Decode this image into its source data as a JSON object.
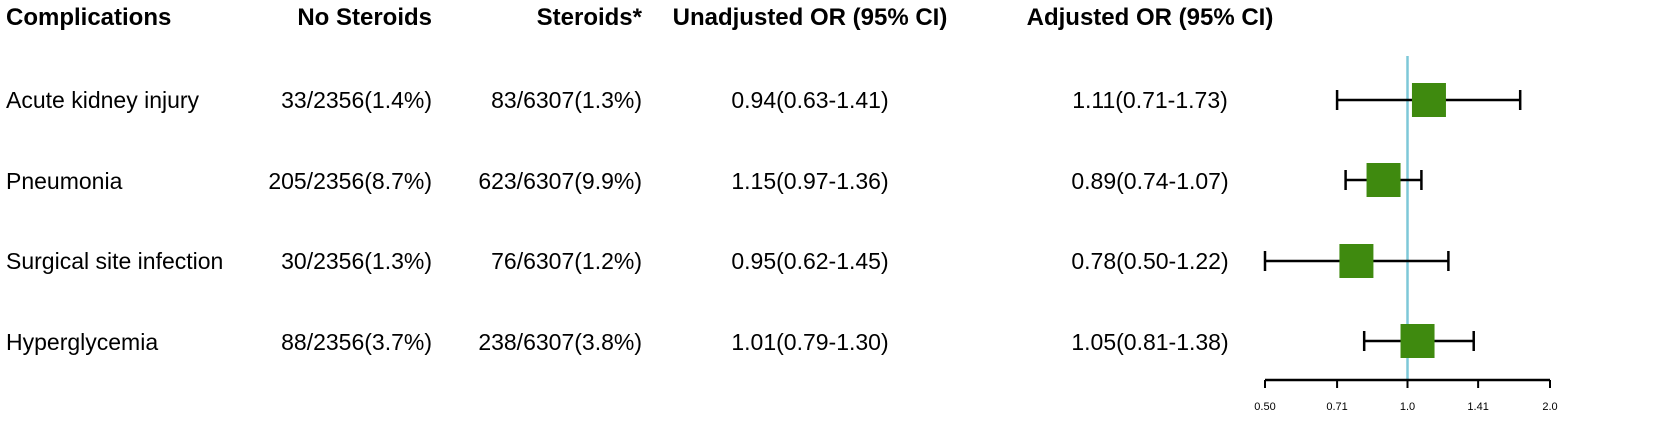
{
  "headers": {
    "complications": "Complications",
    "no_steroids": "No Steroids",
    "steroids": "Steroids*",
    "unadjusted": "Unadjusted OR (95% CI)",
    "adjusted": "Adjusted OR (95% CI)"
  },
  "rows": [
    {
      "name": "Acute kidney injury",
      "no_steroids": "33/2356(1.4%)",
      "steroids": "83/6307(1.3%)",
      "unadjusted": "0.94(0.63-1.41)",
      "adjusted": "1.11(0.71-1.73)"
    },
    {
      "name": "Pneumonia",
      "no_steroids": "205/2356(8.7%)",
      "steroids": "623/6307(9.9%)",
      "unadjusted": "1.15(0.97-1.36)",
      "adjusted": "0.89(0.74-1.07)"
    },
    {
      "name": "Surgical site infection",
      "no_steroids": "30/2356(1.3%)",
      "steroids": "76/6307(1.2%)",
      "unadjusted": "0.95(0.62-1.45)",
      "adjusted": "0.78(0.50-1.22)"
    },
    {
      "name": "Hyperglycemia",
      "no_steroids": "88/2356(3.7%)",
      "steroids": "238/6307(3.8%)",
      "unadjusted": "1.01(0.79-1.30)",
      "adjusted": "1.05(0.81-1.38)"
    }
  ],
  "chart_data": {
    "type": "scatter",
    "title": "",
    "xlabel": "",
    "ylabel": "",
    "x_scale": "log",
    "xlim": [
      0.5,
      2.0
    ],
    "x_ticks": [
      "0.50",
      "0.71",
      "1.0",
      "1.41",
      "2.0"
    ],
    "reference_line": 1.0,
    "categories": [
      "Acute kidney injury",
      "Pneumonia",
      "Surgical site infection",
      "Hyperglycemia"
    ],
    "points": [
      {
        "category": "Acute kidney injury",
        "or": 1.11,
        "lower": 0.71,
        "upper": 1.73
      },
      {
        "category": "Pneumonia",
        "or": 0.89,
        "lower": 0.74,
        "upper": 1.07
      },
      {
        "category": "Surgical site infection",
        "or": 0.78,
        "lower": 0.5,
        "upper": 1.22
      },
      {
        "category": "Hyperglycemia",
        "or": 1.05,
        "lower": 0.81,
        "upper": 1.38
      }
    ],
    "marker_color": "#3f8a0f",
    "reference_color": "#7ec8d8"
  }
}
